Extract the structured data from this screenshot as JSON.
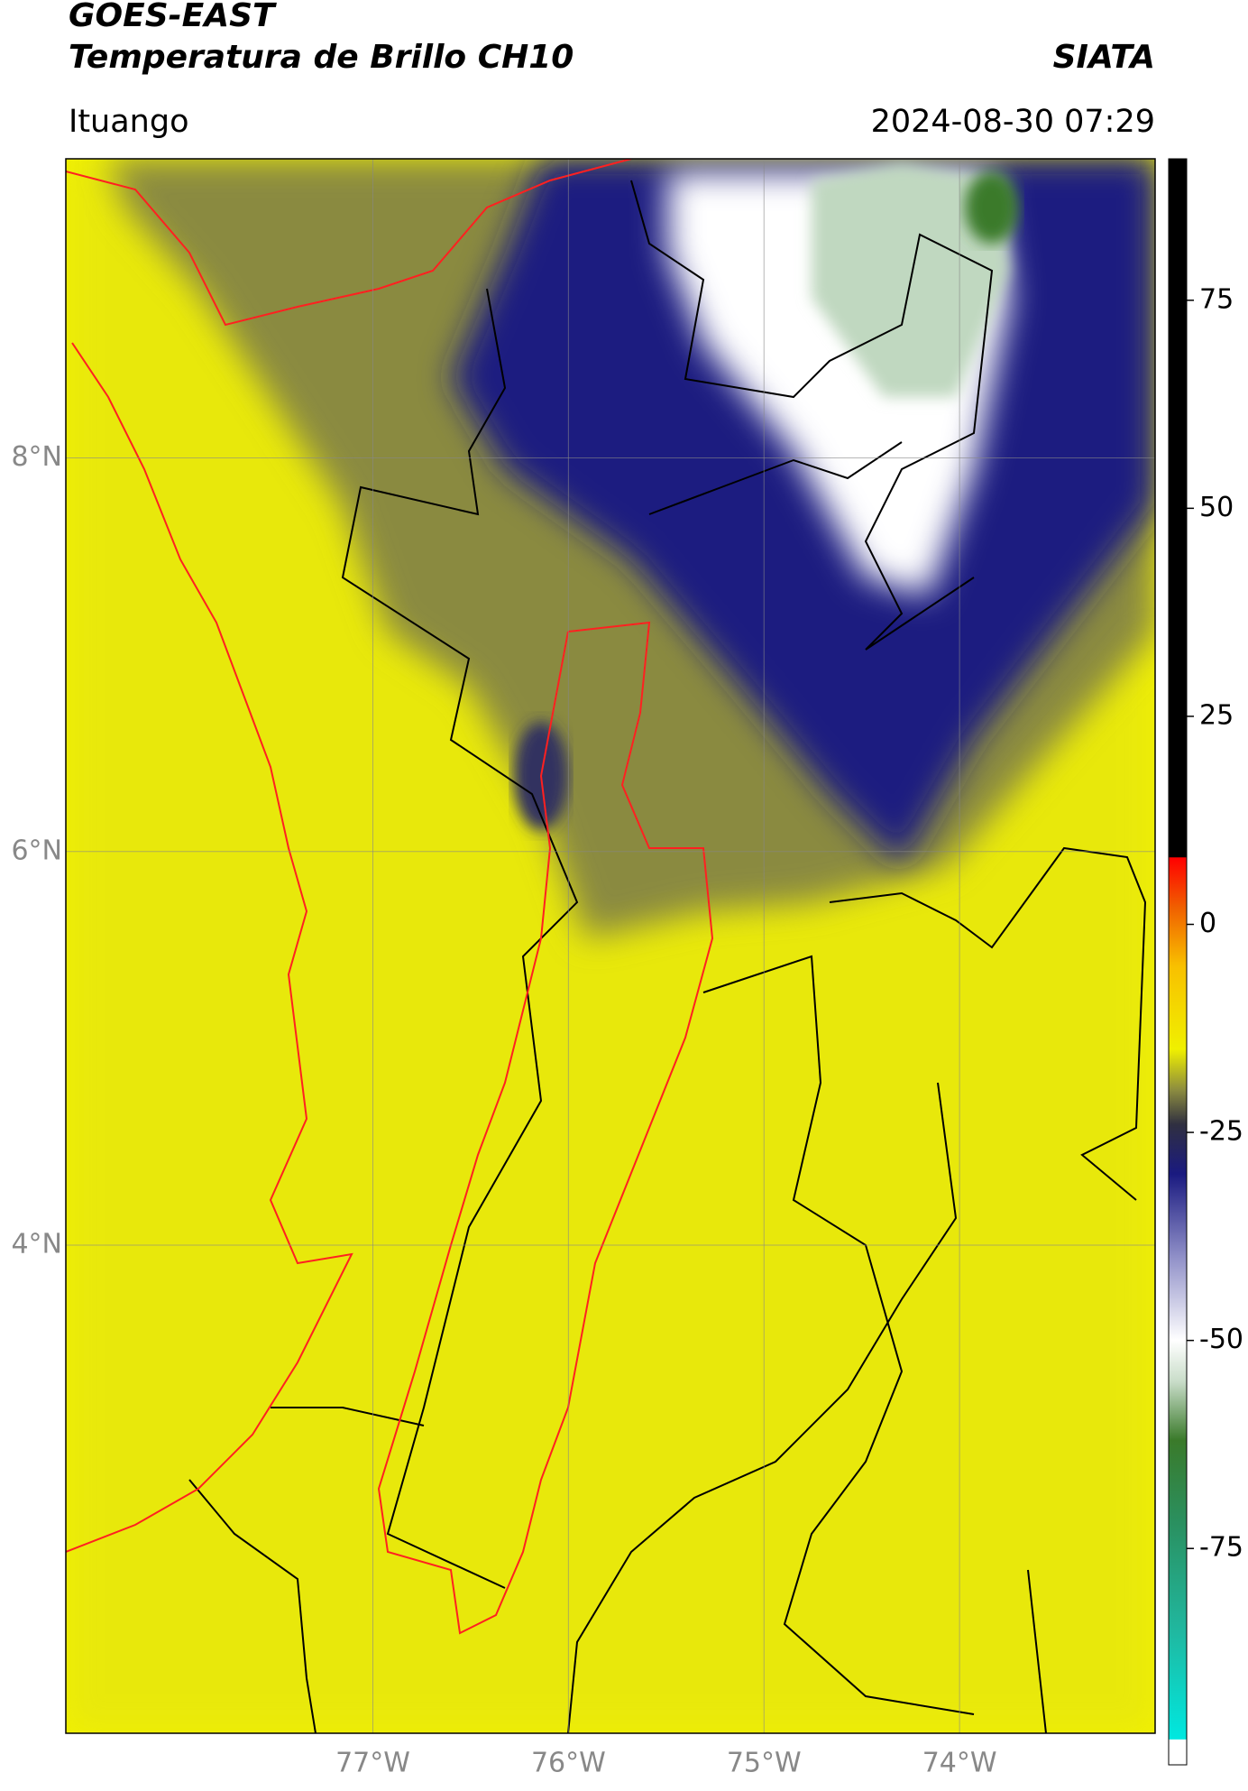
{
  "header": {
    "title": "GOES-EAST",
    "subtitle": "Temperatura de Brillo CH10",
    "source": "SIATA",
    "location": "Ituango",
    "datetime": "2024-08-30 07:29"
  },
  "map": {
    "xlim": [
      -78.57,
      -73.0
    ],
    "ylim": [
      1.52,
      9.52
    ],
    "xticks": [
      {
        "value": -77,
        "label": "77°W"
      },
      {
        "value": -76,
        "label": "76°W"
      },
      {
        "value": -75,
        "label": "75°W"
      },
      {
        "value": -74,
        "label": "74°W"
      }
    ],
    "yticks": [
      {
        "value": 8,
        "label": "8°N"
      },
      {
        "value": 6,
        "label": "6°N"
      },
      {
        "value": 4,
        "label": "4°N"
      }
    ],
    "grid": true
  },
  "colorbar": {
    "lim": [
      -101,
      92
    ],
    "ticks": [
      75,
      50,
      25,
      0,
      -25,
      -50,
      -75
    ],
    "stops": [
      {
        "value": -101,
        "color": "#ffffff"
      },
      {
        "value": -98,
        "color": "#ffffff"
      },
      {
        "value": -97.9,
        "color": "#00e8e0"
      },
      {
        "value": -85,
        "color": "#20b8a0"
      },
      {
        "value": -72,
        "color": "#2a9060"
      },
      {
        "value": -62,
        "color": "#3a7a2a"
      },
      {
        "value": -55,
        "color": "#c8dcc8"
      },
      {
        "value": -50,
        "color": "#ffffff"
      },
      {
        "value": -40,
        "color": "#9090c8"
      },
      {
        "value": -30,
        "color": "#1a1a80"
      },
      {
        "value": -24,
        "color": "#303040"
      },
      {
        "value": -20,
        "color": "#8a8a40"
      },
      {
        "value": -15,
        "color": "#f0f000"
      },
      {
        "value": -5,
        "color": "#f8c000"
      },
      {
        "value": 2,
        "color": "#f06000"
      },
      {
        "value": 8,
        "color": "#ff0000"
      },
      {
        "value": 8.1,
        "color": "#000000"
      },
      {
        "value": 92,
        "color": "#000000"
      }
    ]
  }
}
